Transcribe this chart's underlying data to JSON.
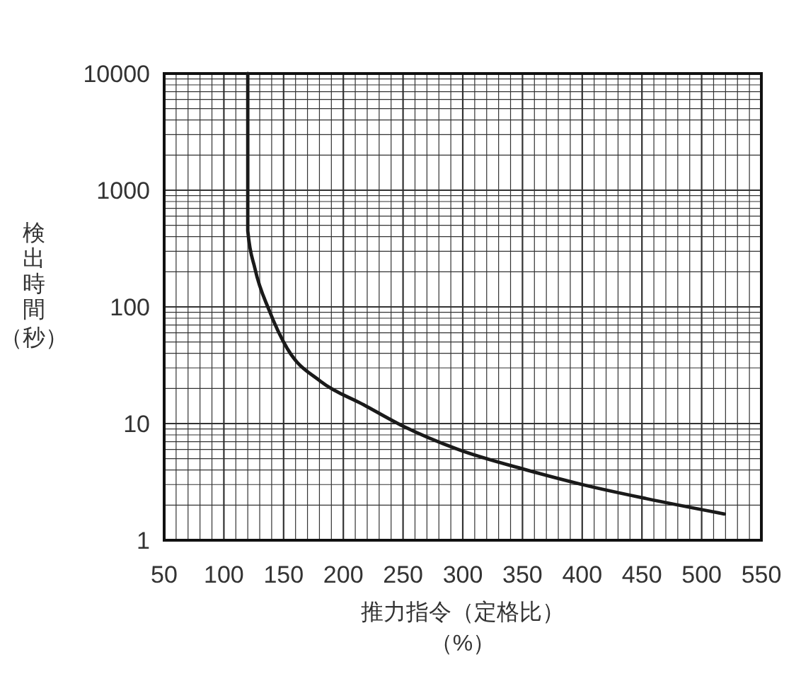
{
  "chart_data": {
    "type": "line",
    "xlabel": "推力指令（定格比）（%）",
    "ylabel": "検出時間（秒）",
    "series": [
      {
        "color": "#1a1a1a",
        "x": [
          120,
          120,
          126,
          138,
          153,
          181,
          217,
          250,
          296,
          355,
          400,
          454,
          519
        ],
        "values": [
          10000,
          448,
          213,
          93,
          44,
          23,
          14.5,
          9.5,
          6.0,
          3.96,
          3.0,
          2.27,
          1.68
        ]
      }
    ],
    "xlim": [
      50,
      550
    ],
    "xticks": [
      50,
      100,
      150,
      200,
      250,
      300,
      350,
      400,
      450,
      500,
      550
    ],
    "ylim": [
      1,
      10000
    ],
    "yticks": [
      1,
      10,
      100,
      1000,
      10000
    ],
    "log": "y",
    "grid": true,
    "marker": "none",
    "line_style": "solid"
  }
}
